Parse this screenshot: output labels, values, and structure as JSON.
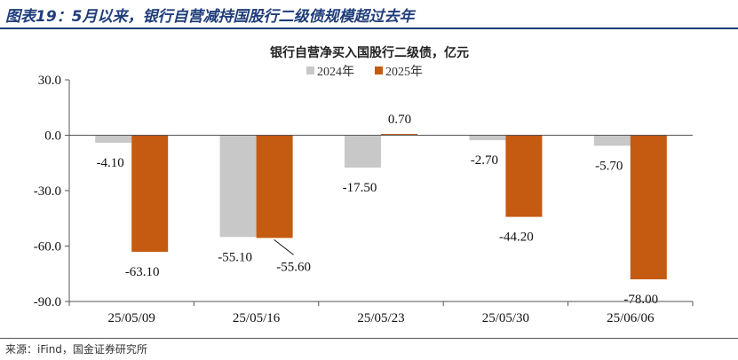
{
  "figure_title": "图表19：5月以来，银行自营减持国股行二级债规模超过去年",
  "source": "来源：iFind，国金证券研究所",
  "chart_data": {
    "type": "bar",
    "title": "银行自营净买入国股行二级债，亿元",
    "categories": [
      "25/05/09",
      "25/05/16",
      "25/05/23",
      "25/05/30",
      "25/06/06"
    ],
    "series": [
      {
        "name": "2024年",
        "color": "#c8c8c8",
        "values": [
          -4.1,
          -55.1,
          -17.5,
          -2.7,
          -5.7
        ]
      },
      {
        "name": "2025年",
        "color": "#c55a11",
        "values": [
          -63.1,
          -55.6,
          0.7,
          -44.2,
          -78.0
        ]
      }
    ],
    "data_labels": [
      [
        "-4.10",
        "-55.10",
        "-17.50",
        "-2.70",
        "-5.70"
      ],
      [
        "-63.10",
        "-55.60",
        "0.70",
        "-44.20",
        "-78.00"
      ]
    ],
    "ylim": [
      -90,
      30
    ],
    "yticks": [
      30,
      0,
      -30,
      -60,
      -90
    ],
    "ytick_labels": [
      "30.0",
      "0.0",
      "-30.0",
      "-60.0",
      "-90.0"
    ],
    "legend_position": "top-center",
    "grid": false,
    "xlabel": "",
    "ylabel": ""
  }
}
